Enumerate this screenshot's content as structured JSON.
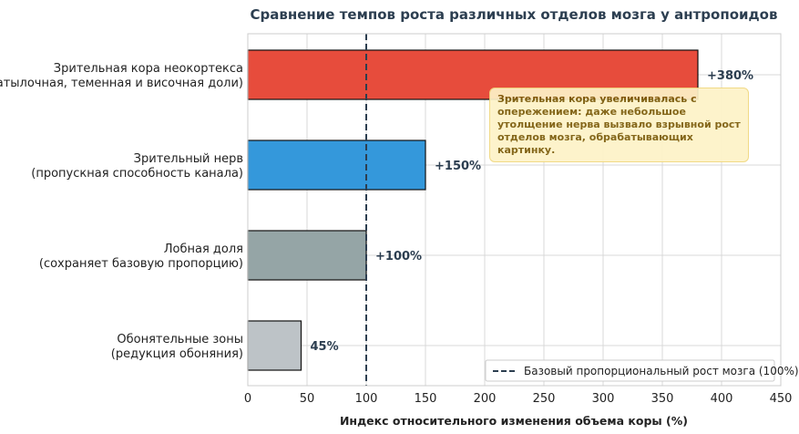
{
  "chart_data": {
    "type": "bar",
    "orientation": "horizontal",
    "title": "Сравнение темпов роста различных отделов мозга у антропоидов",
    "xlabel": "Индекс относительного изменения объема коры (%)",
    "ylabel": "",
    "xlim": [
      0,
      450
    ],
    "xticks": [
      0,
      50,
      100,
      150,
      200,
      250,
      300,
      350,
      400,
      450
    ],
    "grid": true,
    "categories": [
      [
        "Зрительная кора неокортекса",
        "(затылочная, теменная и височная доли)"
      ],
      [
        "Зрительный нерв",
        "(пропускная способность канала)"
      ],
      [
        "Лобная доля",
        "(сохраняет базовую пропорцию)"
      ],
      [
        "Обонятельные зоны",
        "(редукция обоняния)"
      ]
    ],
    "values": [
      380,
      150,
      100,
      45
    ],
    "value_labels": [
      "+380%",
      "+150%",
      "+100%",
      "45%"
    ],
    "colors": [
      "#e74c3c",
      "#3498db",
      "#95a5a6",
      "#bdc3c7"
    ],
    "reference_line": {
      "x": 100,
      "style": "dashed",
      "color": "#2c3e50",
      "label": "Базовый пропорциональный рост мозга (100%)"
    },
    "legend_position": "lower-right",
    "annotation": "Зрительная кора увеличивалась с опережением: даже небольшое утолщение нерва вызвало взрывной рост отделов мозга, обрабатывающих картинку."
  }
}
